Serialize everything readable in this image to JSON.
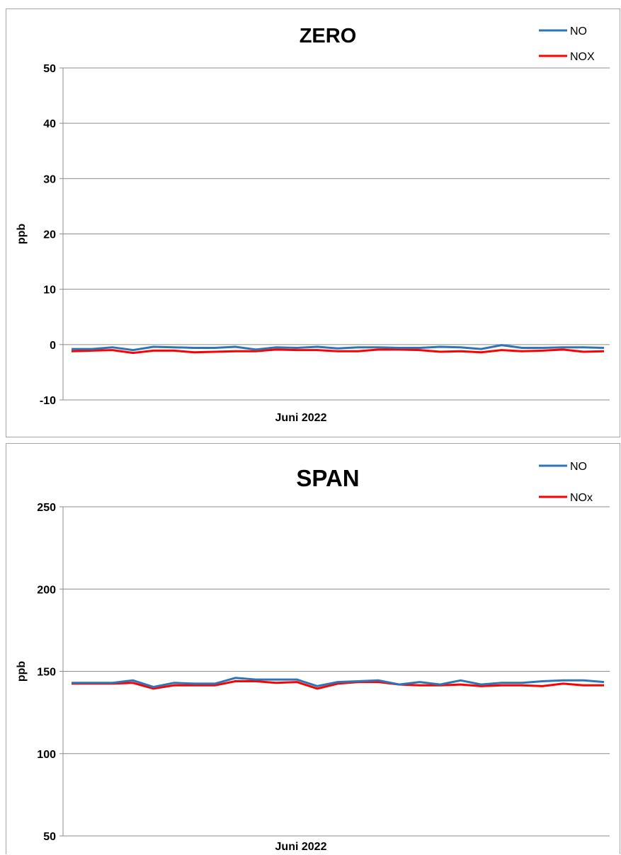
{
  "chart_data": [
    {
      "type": "line",
      "title": "ZERO",
      "xlabel": "Juni 2022",
      "ylabel": "ppb",
      "ylim": [
        -10,
        50
      ],
      "yticks": [
        50,
        40,
        30,
        20,
        10,
        0,
        -10
      ],
      "grid": true,
      "legend_position": "top-right",
      "series": [
        {
          "name": "NO",
          "color": "#2e75b6",
          "values": [
            -0.8,
            -0.8,
            -0.5,
            -1.0,
            -0.4,
            -0.5,
            -0.6,
            -0.6,
            -0.4,
            -0.9,
            -0.5,
            -0.6,
            -0.4,
            -0.7,
            -0.5,
            -0.5,
            -0.6,
            -0.6,
            -0.4,
            -0.5,
            -0.8,
            -0.1,
            -0.6,
            -0.6,
            -0.5,
            -0.5,
            -0.6
          ]
        },
        {
          "name": "NOX",
          "color": "#ff0000",
          "values": [
            -1.2,
            -1.1,
            -1.0,
            -1.5,
            -1.1,
            -1.1,
            -1.4,
            -1.3,
            -1.2,
            -1.2,
            -0.9,
            -1.0,
            -1.0,
            -1.2,
            -1.2,
            -0.9,
            -0.9,
            -1.0,
            -1.3,
            -1.2,
            -1.4,
            -1.0,
            -1.2,
            -1.1,
            -0.9,
            -1.3,
            -1.2
          ]
        }
      ]
    },
    {
      "type": "line",
      "title": "SPAN",
      "xlabel": "Juni 2022",
      "ylabel": "ppb",
      "ylim": [
        50,
        250
      ],
      "yticks": [
        250,
        200,
        150,
        100,
        50
      ],
      "grid": true,
      "legend_position": "top-right",
      "series": [
        {
          "name": "NO",
          "color": "#2e75b6",
          "values": [
            143,
            143,
            143,
            144.5,
            140.5,
            143,
            142.5,
            142.5,
            146,
            145,
            145,
            145,
            141,
            143.5,
            144,
            144.5,
            142,
            143.5,
            142,
            144.5,
            142,
            143,
            143,
            144,
            144.5,
            144.5,
            143.5
          ]
        },
        {
          "name": "NOx",
          "color": "#ff0000",
          "values": [
            142.5,
            142.5,
            142.5,
            143,
            139.5,
            141.5,
            141.5,
            141.5,
            144,
            144,
            143,
            143.5,
            139.5,
            142.5,
            143.5,
            143.5,
            142,
            141.5,
            141.5,
            142,
            141,
            141.5,
            141.5,
            141,
            142.5,
            141.5,
            141.5
          ]
        }
      ]
    }
  ]
}
